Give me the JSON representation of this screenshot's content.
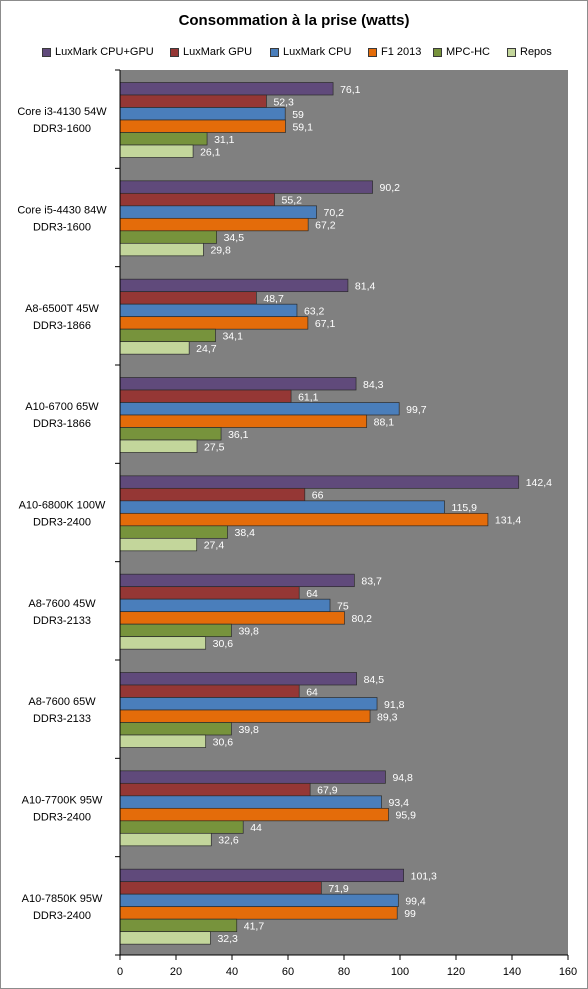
{
  "chart_data": {
    "type": "bar",
    "orientation": "horizontal",
    "title": "Consommation à la prise (watts)",
    "xlabel": "",
    "ylabel": "",
    "xlim": [
      0,
      160
    ],
    "x_ticks": [
      "0",
      "20",
      "40",
      "60",
      "80",
      "100",
      "120",
      "140",
      "160"
    ],
    "grid": false,
    "legend_position": "top",
    "categories": [
      [
        "Core i3-4130 54W",
        "DDR3-1600"
      ],
      [
        "Core i5-4430 84W",
        "DDR3-1600"
      ],
      [
        "A8-6500T 45W",
        "DDR3-1866"
      ],
      [
        "A10-6700 65W",
        "DDR3-1866"
      ],
      [
        "A10-6800K 100W",
        "DDR3-2400"
      ],
      [
        "A8-7600 45W",
        "DDR3-2133"
      ],
      [
        "A8-7600 65W",
        "DDR3-2133"
      ],
      [
        "A10-7700K 95W",
        "DDR3-2400"
      ],
      [
        "A10-7850K 95W",
        "DDR3-2400"
      ]
    ],
    "series": [
      {
        "name": "LuxMark CPU+GPU",
        "color": "#604a7b",
        "values": [
          76.1,
          90.2,
          81.4,
          84.3,
          142.4,
          83.7,
          84.5,
          94.8,
          101.3
        ],
        "labels": [
          "76,1",
          "90,2",
          "81,4",
          "84,3",
          "142,4",
          "83,7",
          "84,5",
          "94,8",
          "101,3"
        ]
      },
      {
        "name": "LuxMark GPU",
        "color": "#953735",
        "values": [
          52.3,
          55.2,
          48.7,
          61.1,
          66,
          64,
          64,
          67.9,
          71.9
        ],
        "labels": [
          "52,3",
          "55,2",
          "48,7",
          "61,1",
          "66",
          "64",
          "64",
          "67,9",
          "71,9"
        ]
      },
      {
        "name": "LuxMark CPU",
        "color": "#4a7ebb",
        "values": [
          59,
          70.2,
          63.2,
          99.7,
          115.9,
          75,
          91.8,
          93.4,
          99.4
        ],
        "labels": [
          "59",
          "70,2",
          "63,2",
          "99,7",
          "115,9",
          "75",
          "91,8",
          "93,4",
          "99,4"
        ]
      },
      {
        "name": "F1 2013",
        "color": "#e46c0a",
        "values": [
          59.1,
          67.2,
          67.1,
          88.1,
          131.4,
          80.2,
          89.3,
          95.9,
          99
        ],
        "labels": [
          "59,1",
          "67,2",
          "67,1",
          "88,1",
          "131,4",
          "80,2",
          "89,3",
          "95,9",
          "99"
        ]
      },
      {
        "name": "MPC-HC",
        "color": "#77933c",
        "values": [
          31.1,
          34.5,
          34.1,
          36.1,
          38.4,
          39.8,
          39.8,
          44,
          41.7
        ],
        "labels": [
          "31,1",
          "34,5",
          "34,1",
          "36,1",
          "38,4",
          "39,8",
          "39,8",
          "44",
          "41,7"
        ]
      },
      {
        "name": "Repos",
        "color": "#c3d69b",
        "values": [
          26.1,
          29.8,
          24.7,
          27.5,
          27.4,
          30.6,
          30.6,
          32.6,
          32.3
        ],
        "labels": [
          "26,1",
          "29,8",
          "24,7",
          "27,5",
          "27,4",
          "30,6",
          "30,6",
          "32,6",
          "32,3"
        ]
      }
    ],
    "colors": {
      "plot_background": "#808080",
      "value_label_text": "#ffffff"
    }
  }
}
